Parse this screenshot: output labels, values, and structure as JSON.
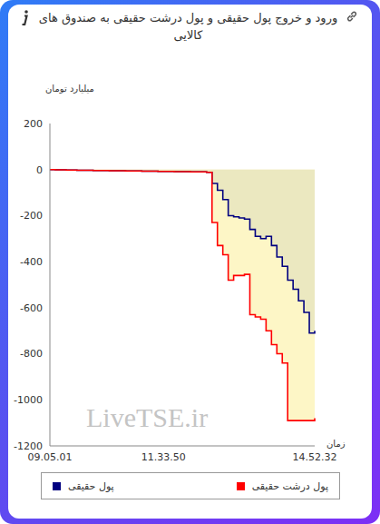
{
  "chart_data": {
    "type": "line",
    "title": "ورود و خروج پول حقیقی و پول درشت حقیقی به صندوق های کالایی",
    "y_label": "میلیارد تومان",
    "x_label": "زمان",
    "annotations": [
      "LiveTSE.ir"
    ],
    "categories": [
      "09.05.01",
      null,
      null,
      null,
      null,
      null,
      null,
      null,
      null,
      null,
      null,
      null,
      null,
      null,
      null,
      null,
      null,
      null,
      null,
      null,
      null,
      "11.33.50",
      null,
      null,
      null,
      null,
      null,
      null,
      null,
      null,
      null,
      null,
      null,
      null,
      null,
      null,
      null,
      null,
      null,
      null,
      null,
      null,
      null,
      null,
      null,
      null,
      null,
      null,
      null,
      "14.52.32"
    ],
    "series": [
      {
        "name": "پول حقیقی",
        "color": "#000080",
        "values": [
          0,
          -1,
          -1,
          -2,
          -2,
          -3,
          -3,
          -3,
          -4,
          -4,
          -4,
          -5,
          -5,
          -5,
          -6,
          -6,
          -6,
          -7,
          -7,
          -7,
          -8,
          -8,
          -8,
          -9,
          -9,
          -9,
          -10,
          -10,
          -10,
          -12,
          -60,
          -90,
          -130,
          -200,
          -205,
          -210,
          -215,
          -260,
          -290,
          -300,
          -290,
          -330,
          -380,
          -420,
          -480,
          -520,
          -570,
          -620,
          -710,
          -700
        ]
      },
      {
        "name": "پول درشت حقیقی",
        "color": "#ff0000",
        "values": [
          0,
          -1,
          -1,
          -2,
          -2,
          -3,
          -3,
          -3,
          -4,
          -4,
          -4,
          -5,
          -5,
          -5,
          -6,
          -6,
          -6,
          -7,
          -7,
          -7,
          -8,
          -8,
          -8,
          -9,
          -9,
          -9,
          -10,
          -10,
          -10,
          -12,
          -230,
          -330,
          -370,
          -480,
          -460,
          -460,
          -455,
          -630,
          -640,
          -650,
          -700,
          -760,
          -800,
          -840,
          -1090,
          -1090,
          -1090,
          -1090,
          -1090,
          -1080
        ]
      }
    ],
    "ylim": [
      -1200,
      200
    ],
    "yticks": [
      200,
      0,
      -200,
      -400,
      -600,
      -800,
      -1000,
      -1200
    ],
    "legend": "bottom",
    "line_style": "step"
  }
}
